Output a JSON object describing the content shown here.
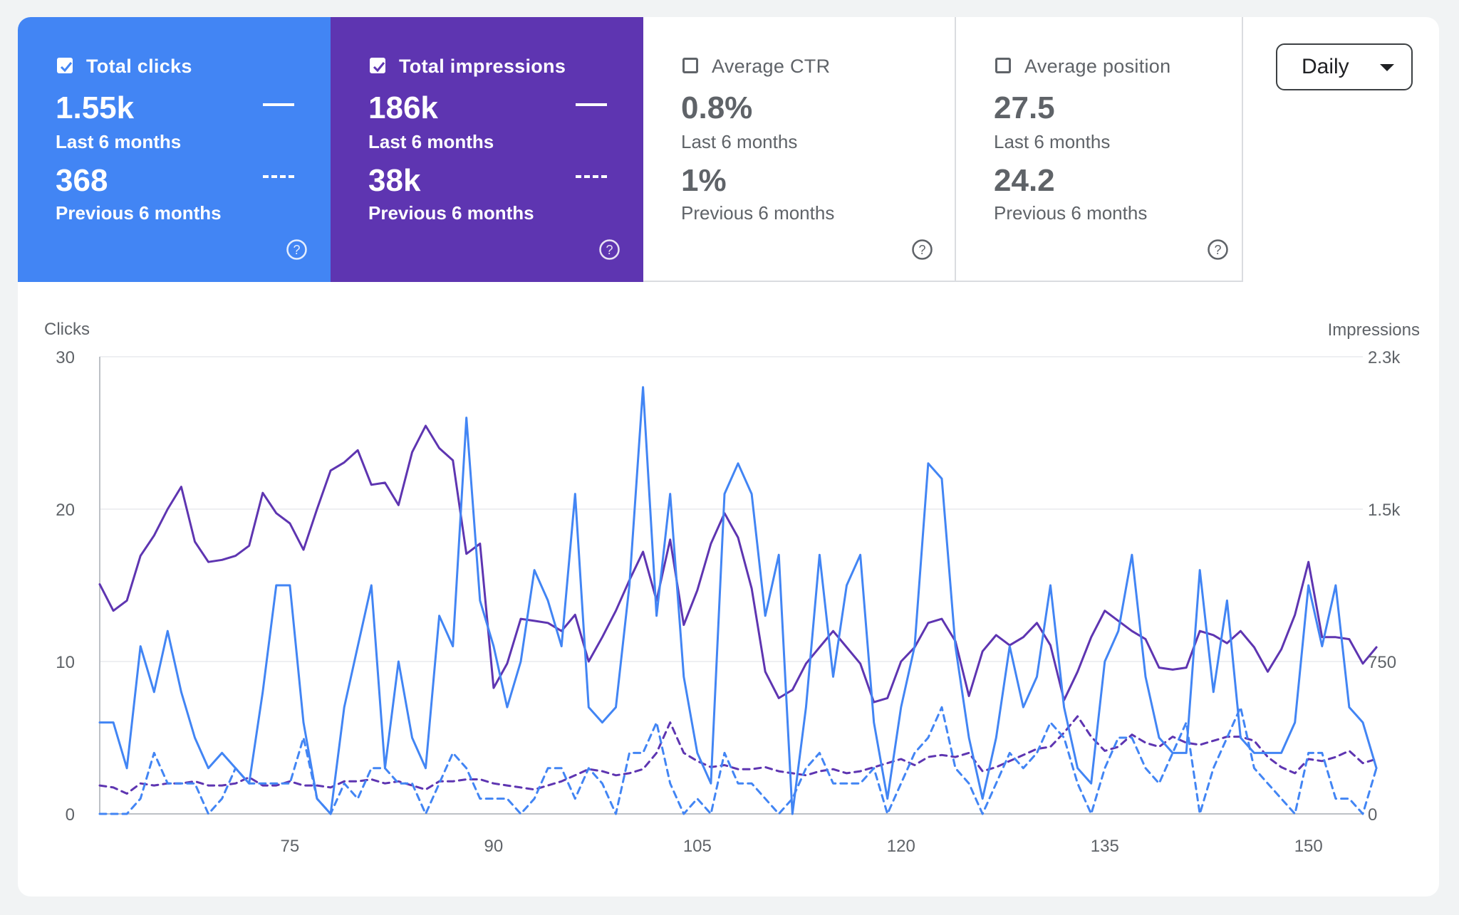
{
  "metrics": [
    {
      "id": "clicks",
      "title": "Total clicks",
      "checked": true,
      "value_current": "1.55k",
      "period_current": "Last 6 months",
      "value_previous": "368",
      "period_previous": "Previous 6 months"
    },
    {
      "id": "impressions",
      "title": "Total impressions",
      "checked": true,
      "value_current": "186k",
      "period_current": "Last 6 months",
      "value_previous": "38k",
      "period_previous": "Previous 6 months"
    },
    {
      "id": "ctr",
      "title": "Average CTR",
      "checked": false,
      "value_current": "0.8%",
      "period_current": "Last 6 months",
      "value_previous": "1%",
      "period_previous": "Previous 6 months"
    },
    {
      "id": "position",
      "title": "Average position",
      "checked": false,
      "value_current": "27.5",
      "period_current": "Last 6 months",
      "value_previous": "24.2",
      "period_previous": "Previous 6 months"
    }
  ],
  "granularity": {
    "selected": "Daily"
  },
  "colors": {
    "clicks": "#4285f4",
    "impressions": "#5e35b1",
    "grid": "#e8eaed",
    "axis_text": "#5f6368"
  },
  "icons": {
    "help": "help-circle-icon",
    "dropdown": "caret-down-icon",
    "checkbox": "checkbox-icon"
  },
  "chart_data": {
    "type": "line",
    "ylabel_left": "Clicks",
    "ylabel_right": "Impressions",
    "ylim_left": [
      0,
      30
    ],
    "ylim_right": [
      0,
      2250
    ],
    "yticks_left": [
      "0",
      "10",
      "20",
      "30"
    ],
    "yticks_left_values": [
      0,
      10,
      20,
      30
    ],
    "yticks_right": [
      "0",
      "750",
      "1.5k",
      "2.3k"
    ],
    "yticks_right_values": [
      0,
      750,
      1500,
      2250
    ],
    "xlim": [
      61,
      154
    ],
    "xticks": [
      75,
      90,
      105,
      120,
      135,
      150
    ],
    "x_start": 61,
    "grid": true,
    "series": [
      {
        "name": "Total impressions",
        "axis": "right",
        "style": "solid",
        "color": "#5e35b1",
        "values": [
          1130,
          1000,
          1050,
          1270,
          1370,
          1500,
          1610,
          1340,
          1240,
          1250,
          1270,
          1320,
          1580,
          1480,
          1430,
          1300,
          1500,
          1690,
          1730,
          1790,
          1620,
          1630,
          1520,
          1780,
          1910,
          1800,
          1740,
          1280,
          1330,
          620,
          740,
          960,
          950,
          940,
          900,
          980,
          750,
          870,
          1000,
          1150,
          1290,
          1050,
          1350,
          930,
          1100,
          1330,
          1480,
          1360,
          1110,
          700,
          570,
          610,
          740,
          820,
          900,
          820,
          740,
          550,
          570,
          750,
          820,
          940,
          960,
          850,
          580,
          800,
          880,
          830,
          870,
          940,
          830,
          560,
          700,
          870,
          1000,
          950,
          900,
          860,
          720,
          710,
          720,
          900,
          880,
          840,
          900,
          820,
          700,
          810,
          980,
          1240,
          870,
          870,
          860,
          740,
          820
        ]
      },
      {
        "name": "Total clicks",
        "axis": "left",
        "style": "solid",
        "color": "#4285f4",
        "values": [
          6,
          6,
          3,
          11,
          8,
          12,
          8,
          5,
          3,
          4,
          3,
          2,
          8,
          15,
          15,
          6,
          1,
          0,
          7,
          11,
          15,
          3,
          10,
          5,
          3,
          13,
          11,
          26,
          14,
          11,
          7,
          10,
          16,
          14,
          11,
          21,
          7,
          6,
          7,
          15,
          28,
          13,
          21,
          9,
          4,
          2,
          21,
          23,
          21,
          13,
          17,
          0,
          7,
          17,
          9,
          15,
          17,
          6,
          1,
          7,
          11,
          23,
          22,
          11,
          5,
          1,
          5,
          11,
          7,
          9,
          15,
          7,
          3,
          2,
          10,
          12,
          17,
          9,
          5,
          4,
          4,
          16,
          8,
          14,
          5,
          4,
          4,
          4,
          6,
          15,
          11,
          15,
          7,
          6,
          3
        ]
      },
      {
        "name": "Previous impressions",
        "axis": "right",
        "style": "dashed",
        "color": "#5e35b1",
        "values": [
          140,
          130,
          100,
          150,
          140,
          150,
          150,
          160,
          140,
          140,
          150,
          180,
          140,
          140,
          160,
          140,
          140,
          130,
          160,
          160,
          170,
          150,
          160,
          140,
          120,
          160,
          160,
          170,
          170,
          150,
          140,
          130,
          120,
          140,
          160,
          190,
          220,
          210,
          190,
          200,
          220,
          300,
          450,
          300,
          260,
          230,
          240,
          220,
          220,
          230,
          210,
          200,
          190,
          210,
          220,
          200,
          210,
          230,
          250,
          270,
          240,
          280,
          290,
          280,
          300,
          210,
          230,
          260,
          290,
          320,
          330,
          400,
          480,
          380,
          310,
          330,
          390,
          350,
          330,
          380,
          350,
          340,
          360,
          380,
          380,
          360,
          280,
          230,
          200,
          270,
          260,
          280,
          310,
          250,
          270
        ]
      },
      {
        "name": "Previous clicks",
        "axis": "left",
        "style": "dashed",
        "color": "#4285f4",
        "values": [
          0,
          0,
          0,
          1,
          4,
          2,
          2,
          2,
          0,
          1,
          3,
          2,
          2,
          2,
          2,
          5,
          1,
          0,
          2,
          1,
          3,
          3,
          2,
          2,
          0,
          2,
          4,
          3,
          1,
          1,
          1,
          0,
          1,
          3,
          3,
          1,
          3,
          2,
          0,
          4,
          4,
          6,
          2,
          0,
          1,
          0,
          4,
          2,
          2,
          1,
          0,
          1,
          3,
          4,
          2,
          2,
          2,
          3,
          0,
          2,
          4,
          5,
          7,
          3,
          2,
          0,
          2,
          4,
          3,
          4,
          6,
          5,
          2,
          0,
          3,
          5,
          5,
          3,
          2,
          4,
          6,
          0,
          3,
          5,
          7,
          3,
          2,
          1,
          0,
          4,
          4,
          1,
          1,
          0,
          3
        ]
      }
    ]
  }
}
